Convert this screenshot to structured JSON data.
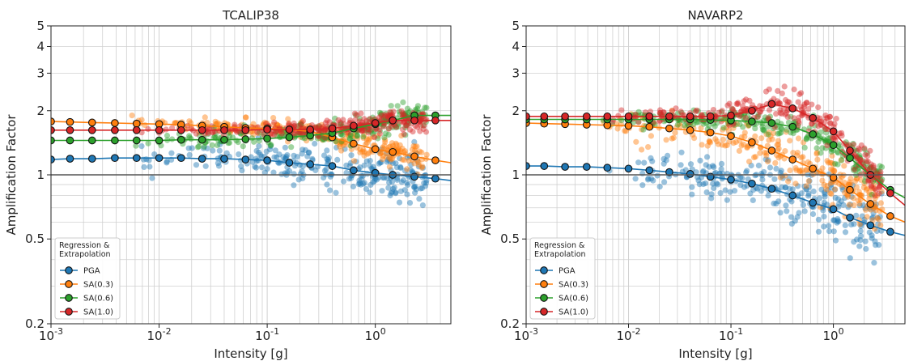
{
  "chart_data": [
    {
      "type": "scatter",
      "title": "TCALIP38",
      "xlabel": "Intensity [g]",
      "ylabel": "Amplification Factor",
      "xscale": "log",
      "yscale": "log",
      "xlim": [
        0.001,
        5
      ],
      "ylim": [
        0.2,
        5
      ],
      "x_ticks": [
        0.001,
        0.01,
        0.1,
        1
      ],
      "x_tick_labels": {
        "base": "10",
        "exponents": [
          "-3",
          "-2",
          "-1",
          "0"
        ]
      },
      "y_ticks": [
        0.2,
        0.5,
        1,
        2,
        3,
        4,
        5
      ],
      "y_tick_labels": [
        "0.2",
        "0.5",
        "1",
        "2",
        "3",
        "4",
        "5"
      ],
      "grid": true,
      "reference_line_y": 1,
      "legend": {
        "title": "Regression &\nExtrapolation",
        "title_lines": [
          "Regression &",
          "Extrapolation"
        ],
        "placement": "lower-left"
      },
      "series": [
        {
          "name": "PGA",
          "color": "#1f77b4",
          "x": [
            0.001,
            0.0015,
            0.0024,
            0.0039,
            0.0062,
            0.01,
            0.016,
            0.025,
            0.04,
            0.063,
            0.1,
            0.16,
            0.25,
            0.4,
            0.63,
            1.0,
            1.45,
            2.3,
            3.6,
            5.0
          ],
          "y": [
            1.18,
            1.19,
            1.19,
            1.2,
            1.2,
            1.2,
            1.2,
            1.19,
            1.19,
            1.18,
            1.17,
            1.14,
            1.12,
            1.1,
            1.05,
            1.02,
            1.0,
            0.98,
            0.96,
            0.94
          ],
          "scatter_center": 1.15,
          "scatter_spread": 0.09
        },
        {
          "name": "SA(0.3)",
          "color": "#ff7f0e",
          "x": [
            0.001,
            0.0015,
            0.0024,
            0.0039,
            0.0062,
            0.01,
            0.016,
            0.025,
            0.04,
            0.063,
            0.1,
            0.16,
            0.25,
            0.4,
            0.63,
            1.0,
            1.45,
            2.3,
            3.6,
            5.0
          ],
          "y": [
            1.78,
            1.77,
            1.76,
            1.75,
            1.74,
            1.73,
            1.72,
            1.7,
            1.68,
            1.66,
            1.65,
            1.63,
            1.6,
            1.5,
            1.4,
            1.32,
            1.28,
            1.22,
            1.17,
            1.14
          ],
          "scatter_center": 1.7,
          "scatter_spread": 0.05
        },
        {
          "name": "SA(0.6)",
          "color": "#2ca02c",
          "x": [
            0.001,
            0.0015,
            0.0024,
            0.0039,
            0.0062,
            0.01,
            0.016,
            0.025,
            0.04,
            0.063,
            0.1,
            0.16,
            0.25,
            0.4,
            0.63,
            1.0,
            1.45,
            2.3,
            3.6,
            5.0
          ],
          "y": [
            1.45,
            1.45,
            1.45,
            1.45,
            1.45,
            1.45,
            1.46,
            1.46,
            1.46,
            1.47,
            1.48,
            1.5,
            1.53,
            1.57,
            1.65,
            1.73,
            1.8,
            1.9,
            1.9,
            1.9
          ],
          "scatter_center": 1.46,
          "scatter_spread": 0.05
        },
        {
          "name": "SA(1.0)",
          "color": "#d62728",
          "x": [
            0.001,
            0.0015,
            0.0024,
            0.0039,
            0.0062,
            0.01,
            0.016,
            0.025,
            0.04,
            0.063,
            0.1,
            0.16,
            0.25,
            0.4,
            0.63,
            1.0,
            1.45,
            2.3,
            3.6,
            5.0
          ],
          "y": [
            1.62,
            1.62,
            1.62,
            1.62,
            1.62,
            1.62,
            1.62,
            1.62,
            1.62,
            1.62,
            1.63,
            1.63,
            1.63,
            1.65,
            1.7,
            1.75,
            1.8,
            1.8,
            1.8,
            1.8
          ],
          "scatter_center": 1.63,
          "scatter_spread": 0.04
        }
      ]
    },
    {
      "type": "scatter",
      "title": "NAVARP2",
      "xlabel": "Intensity [g]",
      "ylabel": "Amplification Factor",
      "xscale": "log",
      "yscale": "log",
      "xlim": [
        0.001,
        5
      ],
      "ylim": [
        0.2,
        5
      ],
      "x_ticks": [
        0.001,
        0.01,
        0.1,
        1
      ],
      "x_tick_labels": {
        "base": "10",
        "exponents": [
          "-3",
          "-2",
          "-1",
          "0"
        ]
      },
      "y_ticks": [
        0.2,
        0.5,
        1,
        2,
        3,
        4,
        5
      ],
      "y_tick_labels": [
        "0.2",
        "0.5",
        "1",
        "2",
        "3",
        "4",
        "5"
      ],
      "grid": true,
      "reference_line_y": 1,
      "legend": {
        "title": "Regression &\nExtrapolation",
        "title_lines": [
          "Regression &",
          "Extrapolation"
        ],
        "placement": "lower-left"
      },
      "series": [
        {
          "name": "PGA",
          "color": "#1f77b4",
          "x": [
            0.001,
            0.0015,
            0.0024,
            0.0039,
            0.0062,
            0.01,
            0.016,
            0.025,
            0.04,
            0.063,
            0.1,
            0.16,
            0.25,
            0.4,
            0.63,
            1.0,
            1.45,
            2.3,
            3.6,
            5.0
          ],
          "y": [
            1.1,
            1.1,
            1.09,
            1.09,
            1.08,
            1.07,
            1.05,
            1.03,
            1.01,
            0.98,
            0.95,
            0.91,
            0.86,
            0.8,
            0.74,
            0.69,
            0.63,
            0.58,
            0.54,
            0.52
          ],
          "scatter_center": 1.0,
          "scatter_spread": 0.12
        },
        {
          "name": "SA(0.3)",
          "color": "#ff7f0e",
          "x": [
            0.001,
            0.0015,
            0.0024,
            0.0039,
            0.0062,
            0.01,
            0.016,
            0.025,
            0.04,
            0.063,
            0.1,
            0.16,
            0.25,
            0.4,
            0.63,
            1.0,
            1.45,
            2.3,
            3.6,
            5.0
          ],
          "y": [
            1.75,
            1.74,
            1.73,
            1.72,
            1.71,
            1.7,
            1.68,
            1.65,
            1.62,
            1.58,
            1.52,
            1.42,
            1.3,
            1.18,
            1.07,
            0.97,
            0.85,
            0.73,
            0.64,
            0.6
          ],
          "scatter_center": 1.6,
          "scatter_spread": 0.1
        },
        {
          "name": "SA(0.6)",
          "color": "#2ca02c",
          "x": [
            0.001,
            0.0015,
            0.0024,
            0.0039,
            0.0062,
            0.01,
            0.016,
            0.025,
            0.04,
            0.063,
            0.1,
            0.16,
            0.25,
            0.4,
            0.63,
            1.0,
            1.45,
            2.3,
            3.6,
            5.0
          ],
          "y": [
            1.82,
            1.82,
            1.82,
            1.82,
            1.82,
            1.82,
            1.82,
            1.82,
            1.82,
            1.81,
            1.8,
            1.78,
            1.75,
            1.68,
            1.55,
            1.38,
            1.2,
            1.0,
            0.85,
            0.78
          ],
          "scatter_center": 1.8,
          "scatter_spread": 0.06
        },
        {
          "name": "SA(1.0)",
          "color": "#d62728",
          "x": [
            0.001,
            0.0015,
            0.0024,
            0.0039,
            0.0062,
            0.01,
            0.016,
            0.025,
            0.04,
            0.063,
            0.1,
            0.16,
            0.25,
            0.4,
            0.63,
            1.0,
            1.45,
            2.3,
            3.6,
            5.0
          ],
          "y": [
            1.88,
            1.88,
            1.88,
            1.88,
            1.88,
            1.88,
            1.88,
            1.88,
            1.88,
            1.88,
            1.9,
            2.0,
            2.15,
            2.05,
            1.85,
            1.6,
            1.3,
            1.0,
            0.82,
            0.72
          ],
          "scatter_center": 1.87,
          "scatter_spread": 0.07
        }
      ]
    }
  ]
}
